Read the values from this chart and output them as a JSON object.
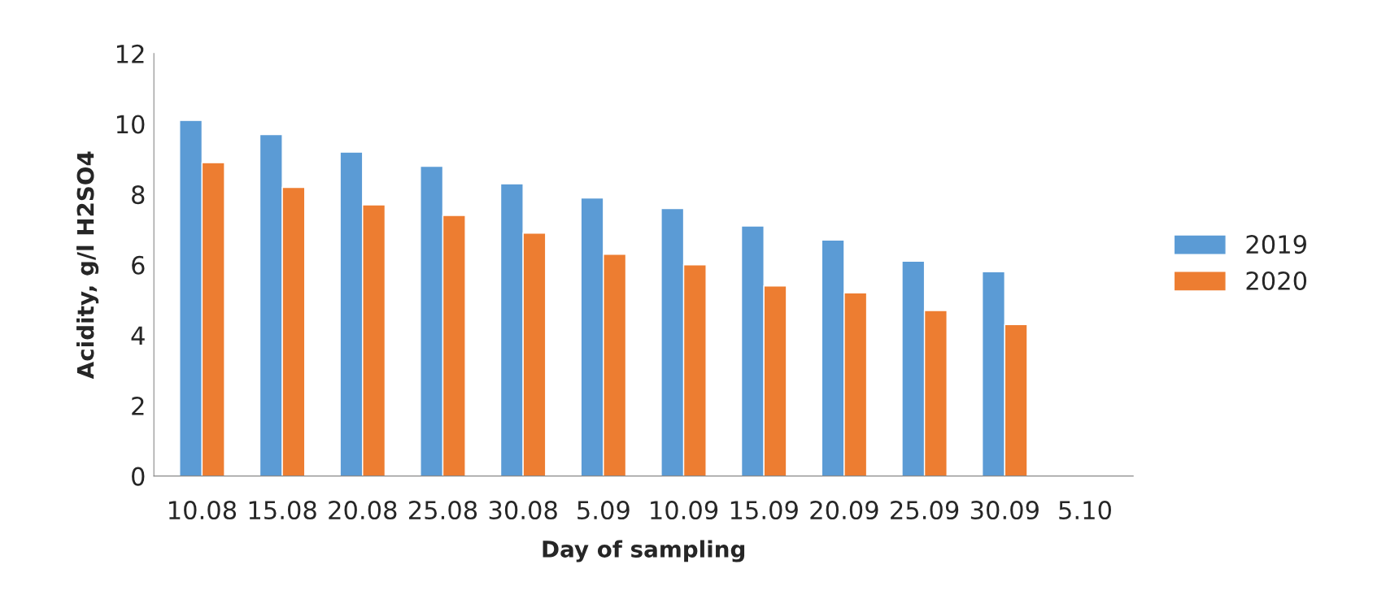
{
  "chart_data": {
    "type": "bar",
    "xlabel": "Day of sampling",
    "ylabel": "Acidity, g/l H2SO4",
    "categories": [
      "10.08",
      "15.08",
      "20.08",
      "25.08",
      "30.08",
      "5.09",
      "10.09",
      "15.09",
      "20.09",
      "25.09",
      "30.09",
      "5.10"
    ],
    "series": [
      {
        "name": "2019",
        "color": "#5b9bd5",
        "values": [
          10.1,
          9.7,
          9.2,
          8.8,
          8.3,
          7.9,
          7.6,
          7.1,
          6.7,
          6.1,
          5.8,
          null
        ]
      },
      {
        "name": "2020",
        "color": "#ed7d31",
        "values": [
          8.9,
          8.2,
          7.7,
          7.4,
          6.9,
          6.3,
          6.0,
          5.4,
          5.2,
          4.7,
          4.3,
          null
        ]
      }
    ],
    "ylim": [
      0,
      12
    ],
    "yticks": [
      0,
      2,
      4,
      6,
      8,
      10,
      12
    ],
    "grid": false,
    "legend": "right"
  }
}
